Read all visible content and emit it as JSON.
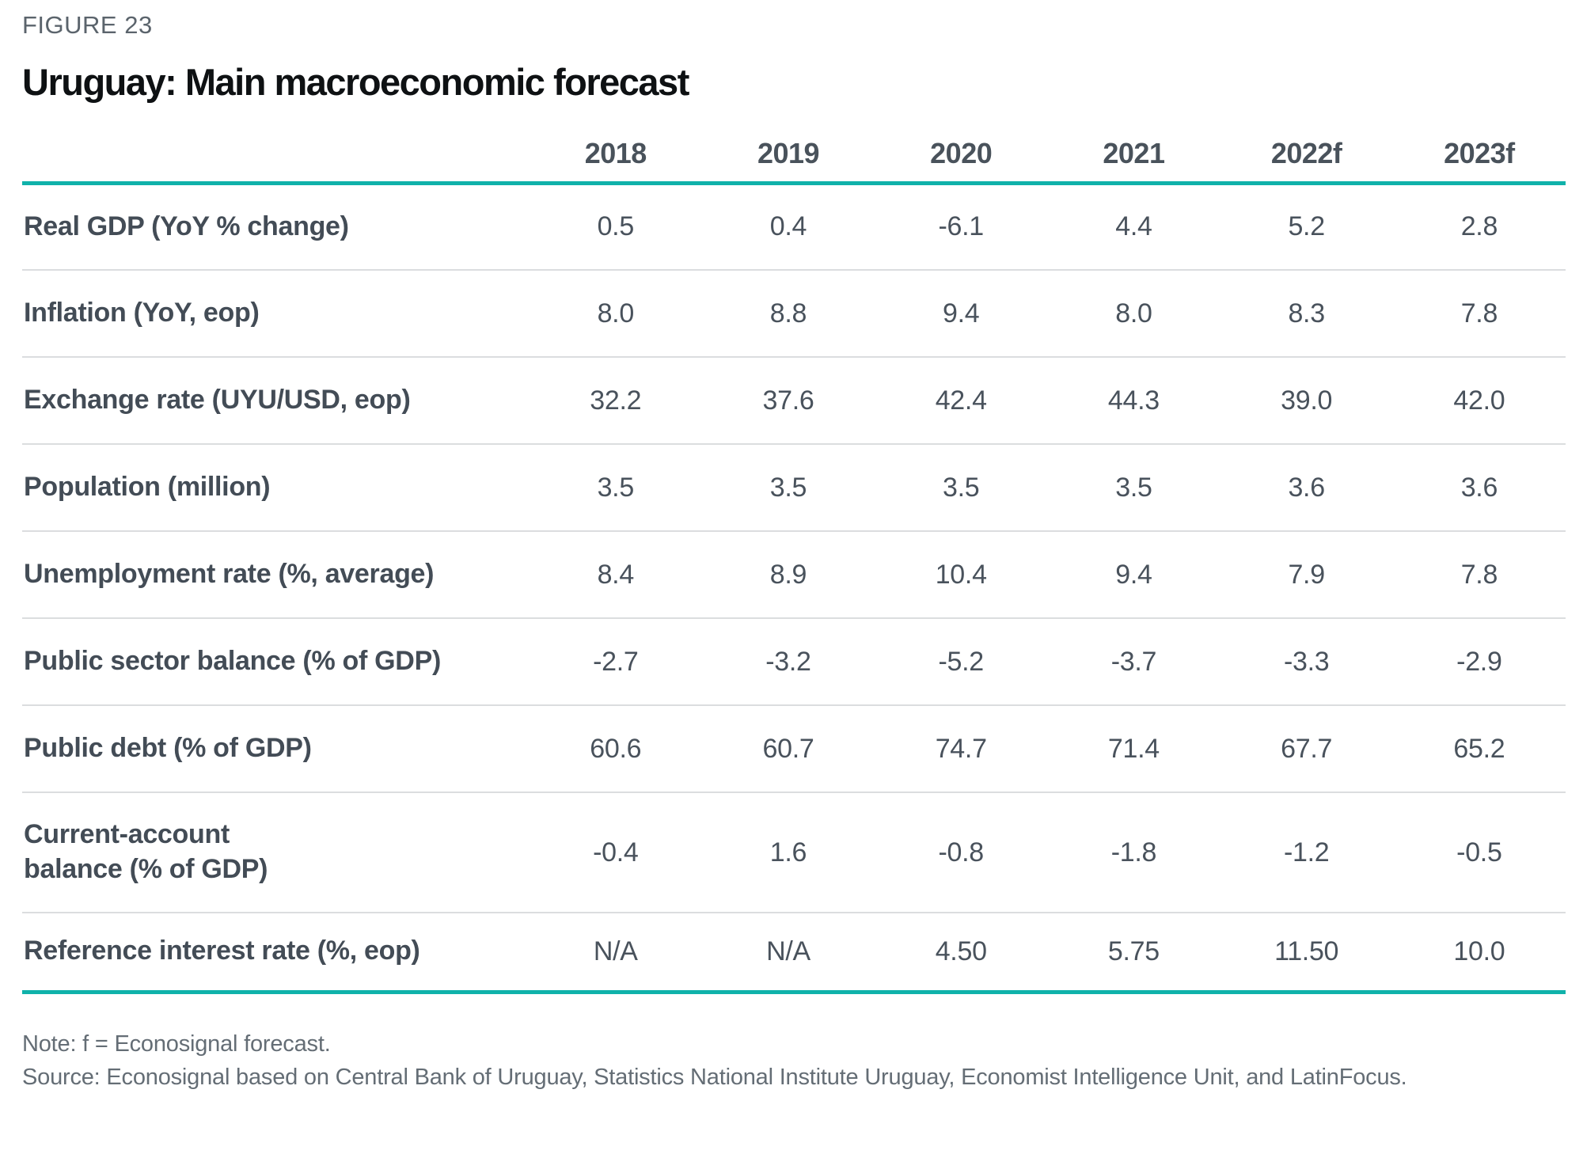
{
  "figure_label": "FIGURE 23",
  "title": "Uruguay: Main macroeconomic forecast",
  "colors": {
    "accent_teal": "#10B2AA"
  },
  "table": {
    "columns": [
      "2018",
      "2019",
      "2020",
      "2021",
      "2022f",
      "2023f"
    ],
    "rows": [
      {
        "label": "Real GDP (YoY % change)",
        "values": [
          "0.5",
          "0.4",
          "-6.1",
          "4.4",
          "5.2",
          "2.8"
        ]
      },
      {
        "label": "Inflation (YoY, eop)",
        "values": [
          "8.0",
          "8.8",
          "9.4",
          "8.0",
          "8.3",
          "7.8"
        ]
      },
      {
        "label": "Exchange rate (UYU/USD, eop)",
        "values": [
          "32.2",
          "37.6",
          "42.4",
          "44.3",
          "39.0",
          "42.0"
        ]
      },
      {
        "label": "Population (million)",
        "values": [
          "3.5",
          "3.5",
          "3.5",
          "3.5",
          "3.6",
          "3.6"
        ]
      },
      {
        "label": "Unemployment rate (%, average)",
        "values": [
          "8.4",
          "8.9",
          "10.4",
          "9.4",
          "7.9",
          "7.8"
        ]
      },
      {
        "label": "Public sector balance (% of GDP)",
        "values": [
          "-2.7",
          "-3.2",
          "-5.2",
          "-3.7",
          "-3.3",
          "-2.9"
        ]
      },
      {
        "label": "Public debt (% of GDP)",
        "values": [
          "60.6",
          "60.7",
          "74.7",
          "71.4",
          "67.7",
          "65.2"
        ]
      },
      {
        "label": "Current-account\nbalance (% of GDP)",
        "values": [
          "-0.4",
          "1.6",
          "-0.8",
          "-1.8",
          "-1.2",
          "-0.5"
        ]
      },
      {
        "label": "Reference interest rate (%, eop)",
        "values": [
          "N/A",
          "N/A",
          "4.50",
          "5.75",
          "11.50",
          "10.0"
        ]
      }
    ]
  },
  "chart_data": {
    "type": "table",
    "title": "Uruguay: Main macroeconomic forecast",
    "categories": [
      "2018",
      "2019",
      "2020",
      "2021",
      "2022f",
      "2023f"
    ],
    "series": [
      {
        "name": "Real GDP (YoY % change)",
        "values": [
          0.5,
          0.4,
          -6.1,
          4.4,
          5.2,
          2.8
        ]
      },
      {
        "name": "Inflation (YoY, eop)",
        "values": [
          8.0,
          8.8,
          9.4,
          8.0,
          8.3,
          7.8
        ]
      },
      {
        "name": "Exchange rate (UYU/USD, eop)",
        "values": [
          32.2,
          37.6,
          42.4,
          44.3,
          39.0,
          42.0
        ]
      },
      {
        "name": "Population (million)",
        "values": [
          3.5,
          3.5,
          3.5,
          3.5,
          3.6,
          3.6
        ]
      },
      {
        "name": "Unemployment rate (%, average)",
        "values": [
          8.4,
          8.9,
          10.4,
          9.4,
          7.9,
          7.8
        ]
      },
      {
        "name": "Public sector balance (% of GDP)",
        "values": [
          -2.7,
          -3.2,
          -5.2,
          -3.7,
          -3.3,
          -2.9
        ]
      },
      {
        "name": "Public debt (% of GDP)",
        "values": [
          60.6,
          60.7,
          74.7,
          71.4,
          67.7,
          65.2
        ]
      },
      {
        "name": "Current-account balance (% of GDP)",
        "values": [
          -0.4,
          1.6,
          -0.8,
          -1.8,
          -1.2,
          -0.5
        ]
      },
      {
        "name": "Reference interest rate (%, eop)",
        "values": [
          "N/A",
          "N/A",
          4.5,
          5.75,
          11.5,
          10.0
        ]
      }
    ]
  },
  "footer": {
    "note": "Note: f = Econosignal forecast.",
    "source": "Source: Econosignal based on Central Bank of Uruguay, Statistics National Institute Uruguay, Economist Intelligence Unit, and LatinFocus."
  }
}
